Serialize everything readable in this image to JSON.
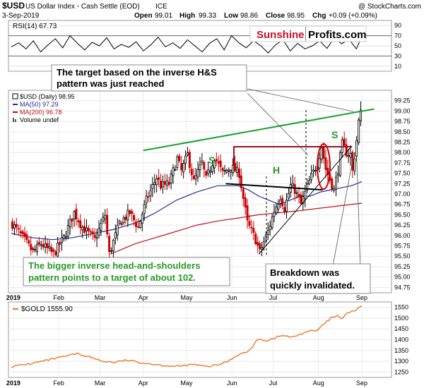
{
  "header": {
    "symbol": "$USD",
    "name": "US Dollar Index - Cash Settle (EOD)",
    "exchange": "ICE",
    "credit": "@ StockCharts.com",
    "date": "3-Sep-2019",
    "ohlc": {
      "open_label": "Open",
      "open": "99.01",
      "high_label": "High",
      "high": "99.33",
      "low_label": "Low",
      "low": "98.86",
      "close_label": "Close",
      "close": "98.95",
      "chg_label": "Chg",
      "chg": "+0.09 (+0.09%)"
    }
  },
  "logo": {
    "part1": "Sunshine",
    "part2": "Profits.com"
  },
  "annotations": {
    "target_line1": "The target based on the inverse H&S",
    "target_line2": "pattern was just reached",
    "bigger_line1": "The bigger inverse head-and-shoulders",
    "bigger_line2": "pattern points to a target of about 102.",
    "breakdown_line1": "Breakdown was",
    "breakdown_line2": "quickly invalidated.",
    "label_s_left": "S",
    "label_h": "H",
    "label_s_right": "S"
  },
  "colors": {
    "up": "#000000",
    "down": "#cc0000",
    "ma50": "#1f2f8f",
    "ma200": "#c01020",
    "trend_green": "#18a030",
    "gold": "#e9782a",
    "annotation_green": "#2a9a2a",
    "logo_red": "#c8102e",
    "neckline_red": "#a01020"
  },
  "chart_data": [
    {
      "panel": "rsi",
      "type": "line",
      "label": "RSI(14) 67.73",
      "y_ticks": [
        10,
        30,
        50,
        70,
        90
      ],
      "ylim": [
        0,
        100
      ],
      "levels": [
        30,
        70
      ],
      "points": [
        [
          0,
          48
        ],
        [
          4,
          56
        ],
        [
          8,
          44
        ],
        [
          12,
          60
        ],
        [
          16,
          38
        ],
        [
          20,
          52
        ],
        [
          24,
          64
        ],
        [
          28,
          46
        ],
        [
          32,
          70
        ],
        [
          36,
          55
        ],
        [
          40,
          42
        ],
        [
          44,
          57
        ],
        [
          48,
          50
        ],
        [
          52,
          66
        ],
        [
          56,
          44
        ],
        [
          60,
          53
        ],
        [
          64,
          47
        ],
        [
          68,
          58
        ],
        [
          72,
          40
        ],
        [
          76,
          52
        ],
        [
          80,
          67
        ],
        [
          84,
          48
        ],
        [
          88,
          56
        ],
        [
          92,
          45
        ],
        [
          96,
          62
        ],
        [
          100,
          50
        ],
        [
          104,
          38
        ],
        [
          108,
          55
        ],
        [
          112,
          64
        ],
        [
          116,
          42
        ],
        [
          120,
          70
        ],
        [
          124,
          56
        ],
        [
          128,
          46
        ],
        [
          132,
          60
        ],
        [
          136,
          50
        ],
        [
          140,
          36
        ],
        [
          144,
          52
        ],
        [
          148,
          62
        ],
        [
          152,
          40
        ],
        [
          156,
          55
        ],
        [
          160,
          44
        ],
        [
          164,
          50
        ],
        [
          168,
          60
        ],
        [
          172,
          45
        ],
        [
          176,
          66
        ],
        [
          180,
          54
        ],
        [
          184,
          63
        ],
        [
          188,
          44
        ],
        [
          191,
          68
        ]
      ]
    },
    {
      "panel": "usd",
      "type": "candlestick",
      "series_labels": {
        "price": "$USD (Daily) 98.95",
        "ma50": "MA(50) 97.29",
        "ma200": "MA(200) 96.78",
        "volume": "Volume undef"
      },
      "y_ticks": [
        94.75,
        95.0,
        95.25,
        95.5,
        95.75,
        96.0,
        96.25,
        96.5,
        96.75,
        97.0,
        97.25,
        97.5,
        97.75,
        98.0,
        98.25,
        98.5,
        98.75,
        99.0,
        99.25
      ],
      "ylim": [
        94.62,
        99.5
      ],
      "x_labels": [
        "2019",
        "Feb",
        "Mar",
        "Apr",
        "May",
        "Jun",
        "Jul",
        "Aug",
        "Sep"
      ],
      "x_label_index": [
        1,
        23,
        43,
        64,
        85,
        107,
        127,
        149,
        170
      ],
      "n_bars": 170,
      "anchors": [
        [
          0,
          96.28
        ],
        [
          5,
          95.95
        ],
        [
          10,
          95.6
        ],
        [
          14,
          95.8
        ],
        [
          20,
          95.55
        ],
        [
          25,
          95.95
        ],
        [
          30,
          96.55
        ],
        [
          34,
          96.2
        ],
        [
          40,
          95.9
        ],
        [
          45,
          96.5
        ],
        [
          47,
          95.55
        ],
        [
          52,
          96.3
        ],
        [
          57,
          96.55
        ],
        [
          61,
          96.2
        ],
        [
          65,
          96.85
        ],
        [
          70,
          97.4
        ],
        [
          72,
          97.2
        ],
        [
          76,
          97.25
        ],
        [
          80,
          97.85
        ],
        [
          82,
          97.55
        ],
        [
          85,
          97.95
        ],
        [
          88,
          97.3
        ],
        [
          92,
          97.75
        ],
        [
          94,
          97.35
        ],
        [
          98,
          97.9
        ],
        [
          102,
          97.5
        ],
        [
          106,
          97.65
        ],
        [
          110,
          97.5
        ],
        [
          114,
          96.3
        ],
        [
          118,
          95.9
        ],
        [
          120,
          95.6
        ],
        [
          124,
          96.1
        ],
        [
          127,
          96.6
        ],
        [
          130,
          96.95
        ],
        [
          132,
          96.65
        ],
        [
          135,
          97.2
        ],
        [
          137,
          97.1
        ],
        [
          140,
          96.75
        ],
        [
          144,
          97.3
        ],
        [
          148,
          97.75
        ],
        [
          150,
          98.15
        ],
        [
          152,
          97.6
        ],
        [
          154,
          97.35
        ],
        [
          156,
          97.1
        ],
        [
          158,
          97.6
        ],
        [
          160,
          98.2
        ],
        [
          162,
          98.0
        ],
        [
          164,
          97.95
        ],
        [
          165,
          97.55
        ],
        [
          167,
          98.3
        ],
        [
          168,
          98.75
        ],
        [
          169,
          98.95
        ]
      ],
      "ma50": [
        [
          0,
          96.05
        ],
        [
          10,
          95.95
        ],
        [
          20,
          95.9
        ],
        [
          30,
          95.95
        ],
        [
          40,
          96.05
        ],
        [
          50,
          96.15
        ],
        [
          60,
          96.3
        ],
        [
          70,
          96.55
        ],
        [
          80,
          96.85
        ],
        [
          90,
          97.05
        ],
        [
          100,
          97.2
        ],
        [
          110,
          97.2
        ],
        [
          115,
          97.1
        ],
        [
          120,
          96.95
        ],
        [
          125,
          96.85
        ],
        [
          130,
          96.75
        ],
        [
          135,
          96.85
        ],
        [
          140,
          96.95
        ],
        [
          145,
          96.95
        ],
        [
          150,
          97.05
        ],
        [
          155,
          97.1
        ],
        [
          160,
          97.15
        ],
        [
          165,
          97.2
        ],
        [
          170,
          97.3
        ]
      ],
      "ma200": [
        [
          48,
          95.55
        ],
        [
          60,
          95.8
        ],
        [
          70,
          95.95
        ],
        [
          80,
          96.1
        ],
        [
          90,
          96.25
        ],
        [
          100,
          96.35
        ],
        [
          110,
          96.42
        ],
        [
          120,
          96.5
        ],
        [
          130,
          96.55
        ],
        [
          140,
          96.6
        ],
        [
          150,
          96.66
        ],
        [
          160,
          96.72
        ],
        [
          170,
          96.78
        ]
      ],
      "lines": [
        {
          "name": "green-trend",
          "from": [
            64,
            98.05
          ],
          "to": [
            176,
            99.05
          ]
        },
        {
          "name": "neckline-black",
          "from": [
            104,
            97.25
          ],
          "to": [
            151,
            97.1
          ]
        },
        {
          "name": "neckline-red-top",
          "from": [
            86,
            98.05
          ],
          "to": [
            160,
            98.05
          ]
        },
        {
          "name": "rising-support",
          "from": [
            120,
            95.55
          ],
          "to": [
            165,
            98.15
          ]
        }
      ]
    },
    {
      "panel": "gold",
      "type": "line",
      "label": "$GOLD 1555.90",
      "y_ticks": [
        1250,
        1300,
        1350,
        1400,
        1450,
        1500,
        1550
      ],
      "ylim": [
        1225,
        1575
      ],
      "x_labels": [
        "2019",
        "Feb",
        "Mar",
        "Apr",
        "May",
        "Jun",
        "Jul",
        "Aug",
        "Sep"
      ],
      "points": [
        [
          0,
          1275
        ],
        [
          10,
          1290
        ],
        [
          20,
          1310
        ],
        [
          25,
          1320
        ],
        [
          32,
          1335
        ],
        [
          38,
          1320
        ],
        [
          44,
          1300
        ],
        [
          50,
          1295
        ],
        [
          56,
          1305
        ],
        [
          62,
          1295
        ],
        [
          70,
          1285
        ],
        [
          80,
          1275
        ],
        [
          88,
          1285
        ],
        [
          95,
          1275
        ],
        [
          100,
          1282
        ],
        [
          105,
          1300
        ],
        [
          110,
          1330
        ],
        [
          115,
          1345
        ],
        [
          120,
          1405
        ],
        [
          124,
          1395
        ],
        [
          128,
          1410
        ],
        [
          132,
          1420
        ],
        [
          136,
          1410
        ],
        [
          140,
          1425
        ],
        [
          144,
          1440
        ],
        [
          148,
          1440
        ],
        [
          152,
          1475
        ],
        [
          155,
          1500
        ],
        [
          158,
          1510
        ],
        [
          160,
          1495
        ],
        [
          163,
          1525
        ],
        [
          166,
          1530
        ],
        [
          168,
          1545
        ],
        [
          170,
          1555
        ]
      ]
    }
  ]
}
